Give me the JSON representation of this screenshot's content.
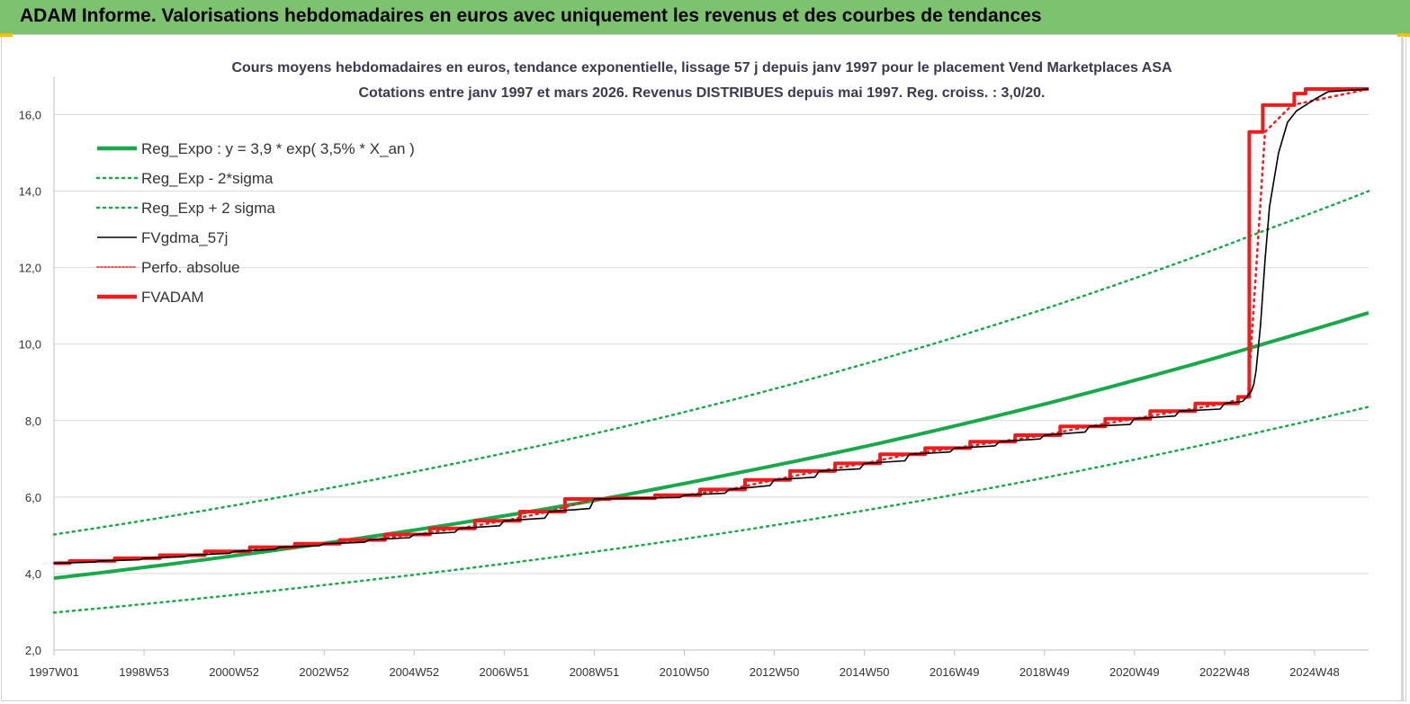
{
  "header": {
    "title": "ADAM Informe. Valorisations hebdomadaires en euros avec uniquement les revenus et des courbes de tendances"
  },
  "colors": {
    "banner": "#7dc36f",
    "green": "#1aa84b",
    "red": "#ee1c1c",
    "black": "#000000",
    "grid": "#d9d9d9"
  },
  "chart_data": {
    "type": "line",
    "title": [
      "Cours moyens hebdomadaires en euros, tendance exponentielle, lissage 57 j depuis janv 1997 pour le placement Vend Marketplaces ASA",
      "Cotations entre janv 1997 et mars 2026. Revenus DISTRIBUES depuis mai 1997. Reg. croiss. : 3,0/20."
    ],
    "xlabel": "",
    "ylabel": "",
    "x_ticks": [
      "1997W01",
      "1998W53",
      "2000W52",
      "2002W52",
      "2004W52",
      "2006W51",
      "2008W51",
      "2010W50",
      "2012W50",
      "2014W50",
      "2016W49",
      "2018W49",
      "2020W49",
      "2022W48",
      "2024W48"
    ],
    "x_tick_years": [
      1997.0,
      1999.0,
      2001.0,
      2003.0,
      2005.0,
      2007.0,
      2009.0,
      2011.0,
      2013.0,
      2015.0,
      2017.0,
      2019.0,
      2021.0,
      2023.0,
      2025.0
    ],
    "xlim": [
      1997.0,
      2026.2
    ],
    "ylim": [
      2.0,
      17.0
    ],
    "y_ticks": [
      "2,0",
      "4,0",
      "6,0",
      "8,0",
      "10,0",
      "12,0",
      "14,0",
      "16,0"
    ],
    "y_tick_values": [
      2,
      4,
      6,
      8,
      10,
      12,
      14,
      16
    ],
    "grid": "horizontal",
    "legend_position": "top-left",
    "legend": [
      "Reg_Expo : y = 3,9 * exp( 3,5% *  X_an )",
      "Reg_Exp - 2*sigma",
      "Reg_Exp + 2 sigma",
      "FVgdma_57j",
      "Perfo. absolue",
      "FVADAM"
    ],
    "series": [
      {
        "name": "Reg_Expo : y = 3,9 * exp( 3,5% *  X_an )",
        "style": "solid-thick",
        "color": "#1aa84b",
        "x": [
          1997,
          2000,
          2003,
          2006,
          2009,
          2012,
          2015,
          2018,
          2021,
          2024,
          2026.2
        ],
        "y": [
          3.88,
          4.31,
          4.79,
          5.32,
          5.91,
          6.59,
          7.32,
          8.14,
          9.05,
          10.05,
          10.82
        ]
      },
      {
        "name": "Reg_Exp - 2*sigma",
        "style": "dotted",
        "color": "#1aa84b",
        "x": [
          1997,
          2000,
          2003,
          2006,
          2009,
          2012,
          2015,
          2018,
          2021,
          2024,
          2026.2
        ],
        "y": [
          2.98,
          3.32,
          3.7,
          4.11,
          4.57,
          5.08,
          5.65,
          6.28,
          6.98,
          7.76,
          8.36
        ]
      },
      {
        "name": "Reg_Exp + 2 sigma",
        "style": "dotted",
        "color": "#1aa84b",
        "x": [
          1997,
          2000,
          2003,
          2006,
          2009,
          2012,
          2015,
          2018,
          2021,
          2024,
          2026.2
        ],
        "y": [
          5.02,
          5.58,
          6.21,
          6.9,
          7.66,
          8.52,
          9.48,
          10.54,
          11.72,
          13.02,
          14.0
        ]
      },
      {
        "name": "FVgdma_57j",
        "style": "solid-thin",
        "color": "#000000",
        "x": [
          1997.0,
          1997.9,
          1998.0,
          1998.9,
          1999.0,
          1999.9,
          2000.0,
          2000.9,
          2001.0,
          2001.9,
          2002.0,
          2002.9,
          2003.0,
          2003.9,
          2004.0,
          2004.9,
          2005.0,
          2005.9,
          2006.0,
          2006.9,
          2007.0,
          2007.9,
          2008.0,
          2008.9,
          2009.0,
          2009.9,
          2010.0,
          2010.9,
          2011.0,
          2011.9,
          2012.0,
          2012.9,
          2013.0,
          2013.9,
          2014.0,
          2014.9,
          2015.0,
          2015.9,
          2016.0,
          2016.9,
          2017.0,
          2017.9,
          2018.0,
          2018.9,
          2019.0,
          2019.9,
          2020.0,
          2020.9,
          2021.0,
          2021.9,
          2022.0,
          2022.9,
          2023.0,
          2023.4,
          2023.5,
          2023.55,
          2023.6,
          2023.65,
          2023.7,
          2023.8,
          2023.9,
          2024.0,
          2024.2,
          2024.4,
          2024.6,
          2024.8,
          2025.0,
          2025.3,
          2026.2
        ],
        "y": [
          4.27,
          4.3,
          4.33,
          4.36,
          4.4,
          4.44,
          4.48,
          4.53,
          4.58,
          4.63,
          4.69,
          4.73,
          4.78,
          4.82,
          4.88,
          4.94,
          5.02,
          5.08,
          5.18,
          5.25,
          5.38,
          5.45,
          5.62,
          5.7,
          5.95,
          5.97,
          5.97,
          5.99,
          6.05,
          6.1,
          6.2,
          6.3,
          6.45,
          6.52,
          6.68,
          6.74,
          6.88,
          6.95,
          7.12,
          7.18,
          7.28,
          7.34,
          7.45,
          7.52,
          7.62,
          7.7,
          7.85,
          7.9,
          8.05,
          8.12,
          8.25,
          8.3,
          8.45,
          8.5,
          8.62,
          8.7,
          8.78,
          8.95,
          9.3,
          10.5,
          12.2,
          13.6,
          15.0,
          15.8,
          16.1,
          16.25,
          16.4,
          16.6,
          16.67
        ]
      },
      {
        "name": "Perfo. absolue",
        "style": "dotted",
        "color": "#ee1c1c",
        "x": [
          1997.0,
          1998.0,
          1999.0,
          2000.0,
          2001.0,
          2002.0,
          2003.0,
          2004.0,
          2005.0,
          2006.0,
          2007.0,
          2008.0,
          2009.0,
          2010.0,
          2011.0,
          2012.0,
          2013.0,
          2014.0,
          2015.0,
          2016.0,
          2017.0,
          2018.0,
          2019.0,
          2020.0,
          2021.0,
          2022.0,
          2023.0,
          2023.52,
          2023.9,
          2024.5,
          2026.2
        ],
        "y": [
          4.27,
          4.33,
          4.4,
          4.48,
          4.58,
          4.69,
          4.78,
          4.88,
          5.02,
          5.18,
          5.38,
          5.62,
          5.95,
          5.97,
          6.05,
          6.2,
          6.45,
          6.68,
          6.88,
          7.12,
          7.28,
          7.45,
          7.62,
          7.85,
          8.05,
          8.25,
          8.45,
          8.62,
          15.55,
          16.25,
          16.67
        ]
      },
      {
        "name": "FVADAM",
        "style": "solid-thick",
        "color": "#ee1c1c",
        "x": [
          1997.0,
          1997.35,
          1997.35,
          1998.35,
          1998.35,
          1999.35,
          1999.35,
          2000.35,
          2000.35,
          2001.35,
          2001.35,
          2002.35,
          2002.35,
          2003.35,
          2003.35,
          2004.35,
          2004.35,
          2005.35,
          2005.35,
          2006.35,
          2006.35,
          2007.35,
          2007.35,
          2008.35,
          2008.35,
          2009.35,
          2009.35,
          2010.35,
          2010.35,
          2011.35,
          2011.35,
          2012.35,
          2012.35,
          2013.35,
          2013.35,
          2014.35,
          2014.35,
          2015.35,
          2015.35,
          2016.35,
          2016.35,
          2017.35,
          2017.35,
          2018.35,
          2018.35,
          2019.35,
          2019.35,
          2020.35,
          2020.35,
          2021.35,
          2021.35,
          2022.35,
          2022.35,
          2023.3,
          2023.3,
          2023.55,
          2023.55,
          2023.85,
          2023.85,
          2024.55,
          2024.55,
          2024.8,
          2024.8,
          2026.2
        ],
        "y": [
          4.27,
          4.27,
          4.33,
          4.33,
          4.4,
          4.4,
          4.48,
          4.48,
          4.58,
          4.58,
          4.69,
          4.69,
          4.78,
          4.78,
          4.88,
          4.88,
          5.02,
          5.02,
          5.18,
          5.18,
          5.38,
          5.38,
          5.62,
          5.62,
          5.95,
          5.95,
          5.97,
          5.97,
          6.05,
          6.05,
          6.2,
          6.2,
          6.45,
          6.45,
          6.68,
          6.68,
          6.88,
          6.88,
          7.12,
          7.12,
          7.28,
          7.28,
          7.45,
          7.45,
          7.62,
          7.62,
          7.85,
          7.85,
          8.05,
          8.05,
          8.25,
          8.25,
          8.45,
          8.45,
          8.62,
          8.62,
          15.55,
          15.55,
          16.25,
          16.25,
          16.55,
          16.55,
          16.67,
          16.67
        ]
      }
    ]
  }
}
